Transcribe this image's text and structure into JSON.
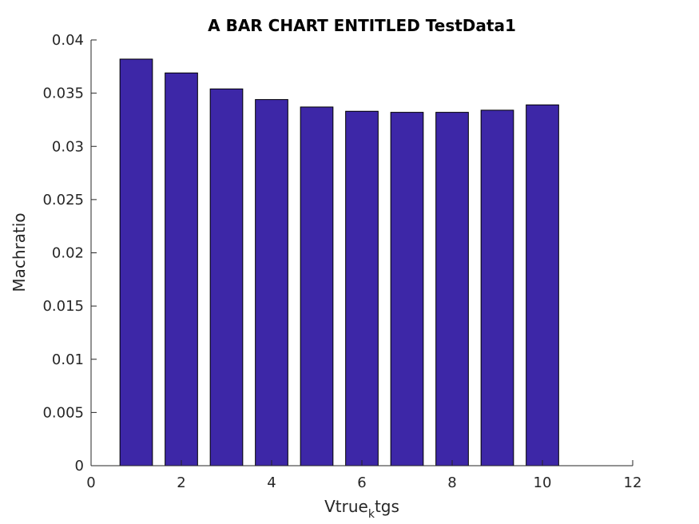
{
  "chart_data": {
    "type": "bar",
    "title": "A BAR CHART ENTITLED TestData1",
    "xlabel_main": "Vtrue",
    "xlabel_sub": "k",
    "xlabel_tail": "tgs",
    "ylabel": "Machratio",
    "x": [
      1,
      2,
      3,
      4,
      5,
      6,
      7,
      8,
      9,
      10
    ],
    "values": [
      0.0382,
      0.0369,
      0.0354,
      0.0344,
      0.0337,
      0.0333,
      0.0332,
      0.0332,
      0.0334,
      0.0339
    ],
    "xlim": [
      0,
      12
    ],
    "ylim": [
      0,
      0.04
    ],
    "xticks": [
      "0",
      "2",
      "4",
      "6",
      "8",
      "10",
      "12"
    ],
    "yticks": [
      "0",
      "0.005",
      "0.01",
      "0.015",
      "0.02",
      "0.025",
      "0.03",
      "0.035",
      "0.04"
    ],
    "bar_color": "#3d27a7",
    "grid": false
  }
}
